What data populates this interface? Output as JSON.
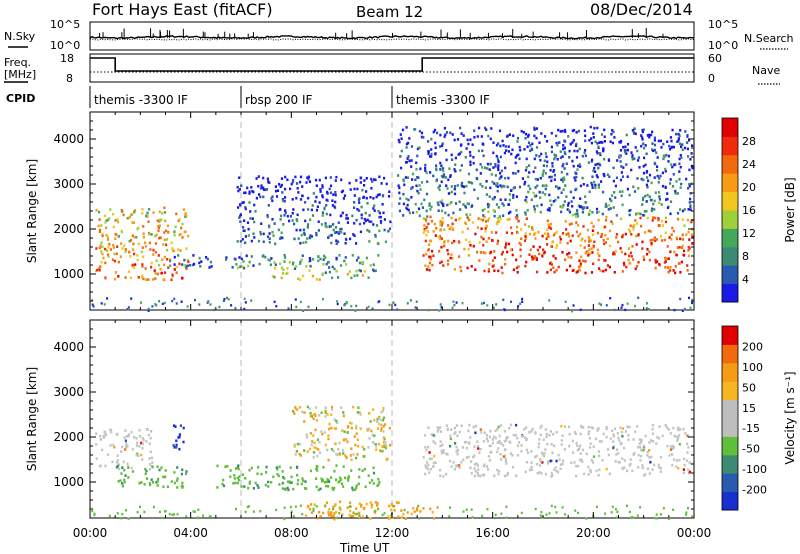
{
  "header": {
    "radar": "Fort Hays East (fitACF)",
    "beam": "Beam 12",
    "date": "08/Dec/2014"
  },
  "strip": {
    "nsky_label": "N.Sky",
    "nsearch_label": "N.Search",
    "freq_label": "Freq.",
    "freq_unit": "[MHz]",
    "nave_label": "Nave",
    "cpid_label": "CPID",
    "nsky_ticks": [
      "10^5",
      "10^0"
    ],
    "nsearch_ticks": [
      "10^5",
      "10^0"
    ],
    "freq_ticks": [
      "18",
      "8"
    ],
    "nave_ticks": [
      "60",
      "0"
    ]
  },
  "cpid_segments": [
    {
      "start": 0.0,
      "end": 6.0,
      "label": "themis -3300 IF"
    },
    {
      "start": 6.0,
      "end": 12.0,
      "label": "rbsp 200 IF"
    },
    {
      "start": 12.0,
      "end": 24.0,
      "label": "themis -3300 IF"
    }
  ],
  "chart_data": [
    {
      "type": "heatmap",
      "name": "power",
      "ylabel": "Slant Range [km]",
      "yticks": [
        1000,
        2000,
        3000,
        4000
      ],
      "ylim": [
        200,
        4600
      ],
      "xlim": [
        0,
        24
      ],
      "colorbar": {
        "label": "Power [dB]",
        "ticks": [
          "4",
          "8",
          "12",
          "16",
          "20",
          "24",
          "28"
        ],
        "colors": [
          "#1a1ae6",
          "#2a5ab0",
          "#3d8a73",
          "#44a85a",
          "#9fcf3a",
          "#f2c61f",
          "#f59b14",
          "#f26a0e",
          "#ee2b0c",
          "#e00000"
        ]
      },
      "echo_regions": [
        {
          "t0": 0.2,
          "t1": 3.9,
          "r0": 900,
          "r1": 2500,
          "level": 0.75
        },
        {
          "t0": 3.0,
          "t1": 7.0,
          "r0": 1150,
          "r1": 1450,
          "level": 0.3
        },
        {
          "t0": 7.0,
          "t1": 11.5,
          "r0": 900,
          "r1": 1450,
          "level": 0.45
        },
        {
          "t0": 5.8,
          "t1": 11.9,
          "r0": 1700,
          "r1": 3200,
          "level": 0.2
        },
        {
          "t0": 13.2,
          "t1": 23.9,
          "r0": 1050,
          "r1": 2300,
          "level": 0.9
        },
        {
          "t0": 12.2,
          "t1": 23.9,
          "r0": 2300,
          "r1": 4300,
          "level": 0.25
        }
      ]
    },
    {
      "type": "heatmap",
      "name": "velocity",
      "ylabel": "Slant Range [km]",
      "xlabel": "Time UT",
      "yticks": [
        1000,
        2000,
        3000,
        4000
      ],
      "xticks": [
        "00:00",
        "04:00",
        "08:00",
        "12:00",
        "16:00",
        "20:00",
        "00:00"
      ],
      "ylim": [
        200,
        4600
      ],
      "xlim": [
        0,
        24
      ],
      "colorbar": {
        "label": "Velocity [m s⁻¹]",
        "ticks": [
          "200",
          "100",
          "50",
          "15",
          "-15",
          "-50",
          "-100",
          "-200"
        ],
        "colors": [
          "#1a2fd0",
          "#2a5ab0",
          "#3d8a73",
          "#5fbf3a",
          "#bebebe",
          "#bebebe",
          "#f6b622",
          "#f59b14",
          "#f26a0e",
          "#e00000"
        ]
      },
      "echo_regions": [
        {
          "t0": 0.2,
          "t1": 2.5,
          "r0": 1300,
          "r1": 2200,
          "kind": "ground"
        },
        {
          "t0": 3.2,
          "t1": 3.8,
          "r0": 1700,
          "r1": 2300,
          "kind": "toward"
        },
        {
          "t0": 1.0,
          "t1": 3.8,
          "r0": 900,
          "r1": 1400,
          "kind": "green"
        },
        {
          "t0": 5.0,
          "t1": 11.5,
          "r0": 850,
          "r1": 1400,
          "kind": "green"
        },
        {
          "t0": 8.0,
          "t1": 11.9,
          "r0": 1500,
          "r1": 2700,
          "kind": "mixed"
        },
        {
          "t0": 13.2,
          "t1": 23.9,
          "r0": 1150,
          "r1": 2300,
          "kind": "ground"
        },
        {
          "t0": 8.5,
          "t1": 14.0,
          "r0": 200,
          "r1": 600,
          "kind": "away"
        }
      ]
    }
  ]
}
